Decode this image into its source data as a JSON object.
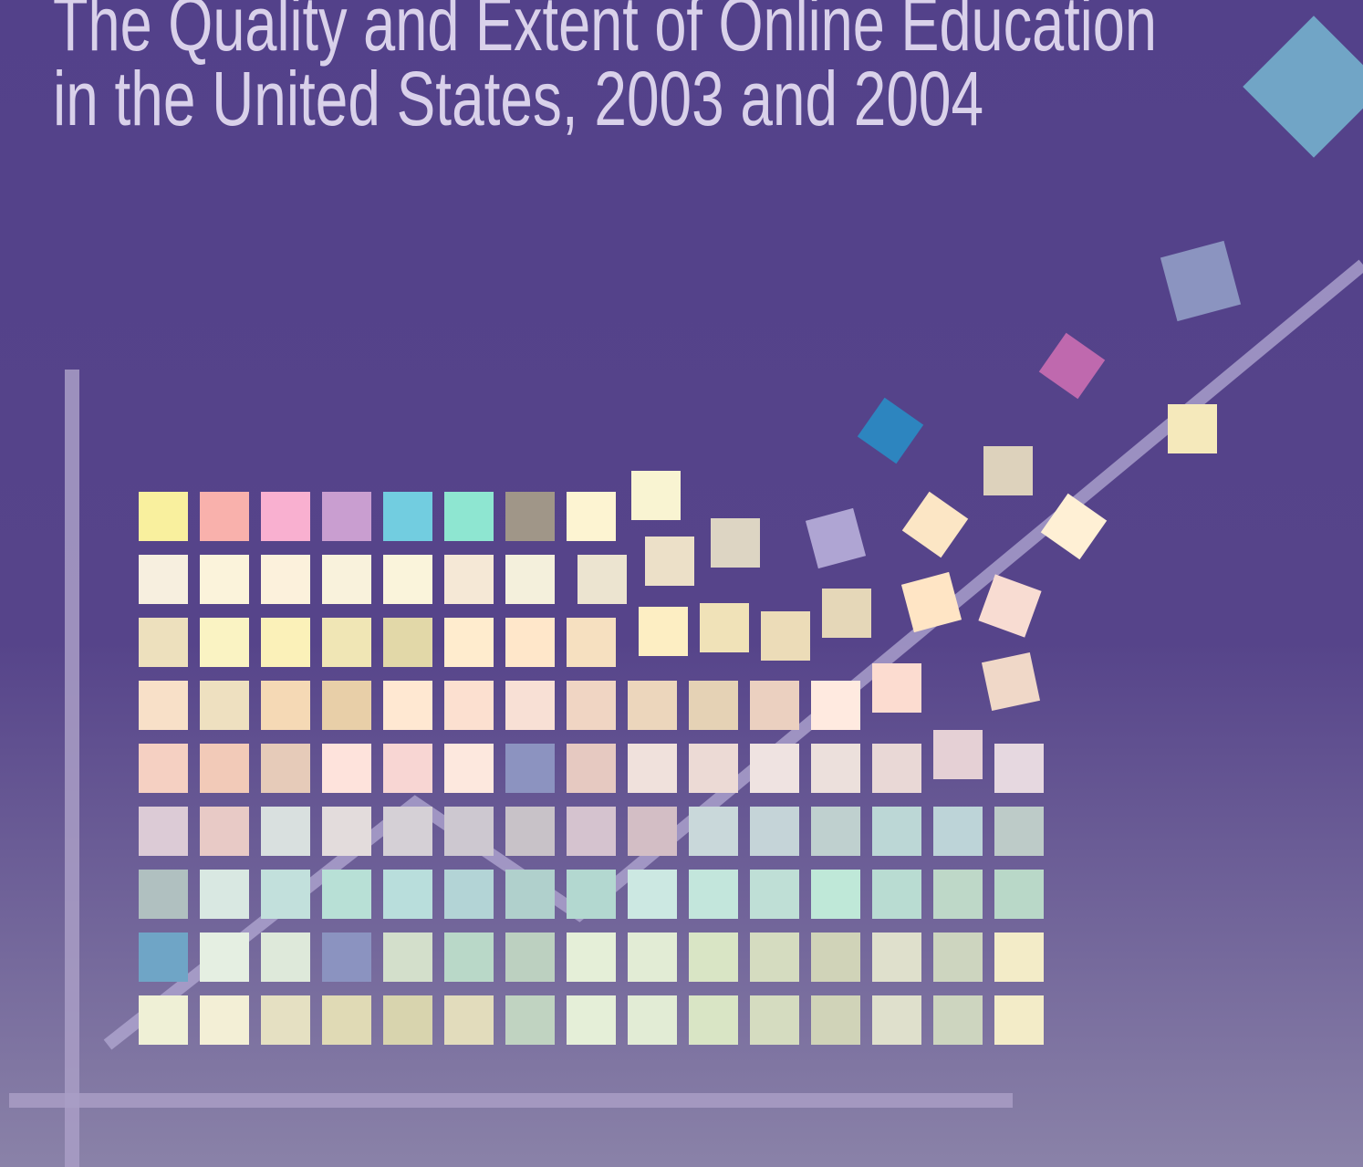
{
  "title": {
    "lines": [
      "The Quality and Extent of Online Education",
      "in the United States, 2003 and 2004"
    ]
  }
}
